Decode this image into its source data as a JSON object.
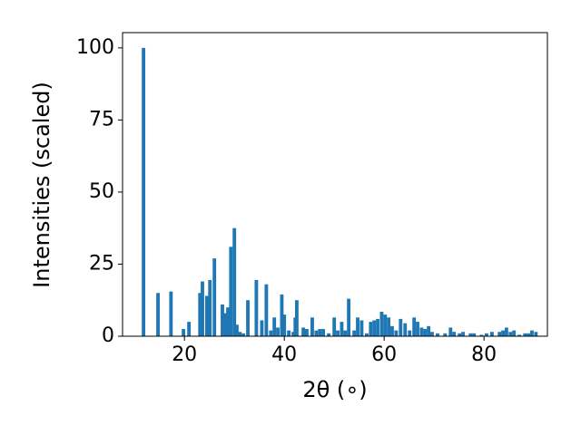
{
  "chart_data": {
    "type": "bar",
    "xlabel": "2θ (∘)",
    "ylabel": "Intensities (scaled)",
    "x": [
      11.8,
      14.7,
      17.3,
      19.8,
      20.9,
      23.1,
      23.6,
      24.5,
      25.1,
      26.0,
      27.6,
      28.2,
      28.7,
      29.3,
      30.0,
      30.5,
      31.1,
      31.8,
      32.7,
      34.4,
      35.5,
      36.4,
      37.3,
      38.0,
      38.7,
      39.5,
      40.0,
      40.9,
      41.8,
      42.2,
      42.5,
      43.8,
      44.5,
      45.6,
      46.4,
      47.1,
      47.8,
      48.9,
      50.0,
      50.7,
      51.5,
      52.2,
      52.9,
      54.0,
      54.7,
      55.5,
      56.5,
      57.3,
      58.0,
      58.7,
      59.5,
      60.2,
      60.9,
      61.6,
      62.4,
      63.3,
      64.2,
      65.1,
      66.0,
      66.7,
      67.5,
      68.2,
      68.9,
      69.6,
      70.7,
      72.2,
      73.3,
      74.0,
      75.1,
      75.8,
      77.3,
      78.0,
      79.5,
      80.5,
      81.6,
      83.1,
      83.8,
      84.5,
      85.3,
      86.0,
      87.1,
      88.2,
      88.9,
      89.6,
      90.4
    ],
    "values": [
      100,
      15,
      15.5,
      2.5,
      5,
      15,
      19,
      14,
      19.5,
      27,
      11,
      8,
      10,
      31,
      37.5,
      4,
      1.5,
      1,
      12.5,
      19.5,
      5.5,
      18,
      2,
      6.5,
      3,
      14.5,
      7.5,
      2,
      1.5,
      6.5,
      12.5,
      3,
      2.5,
      6.5,
      2,
      2.5,
      2.5,
      1,
      6.5,
      2,
      5,
      2,
      13,
      2,
      6.5,
      5.5,
      1,
      5,
      5.5,
      6,
      8.5,
      7.5,
      6.5,
      3.5,
      2,
      6,
      4.5,
      2,
      6.5,
      5,
      3,
      2.5,
      3.5,
      1.5,
      1,
      1,
      3,
      1.5,
      1,
      1.5,
      1,
      1,
      0.5,
      1,
      1.5,
      1.5,
      2,
      3,
      1.5,
      2,
      0.5,
      1,
      1,
      2,
      1.5
    ],
    "color": "#1f77b4",
    "xlim": [
      7.6,
      92.7
    ],
    "xticks": [
      20,
      40,
      60,
      80
    ],
    "ylim": [
      0,
      105.3
    ],
    "yticks": [
      0,
      25,
      50,
      75,
      100
    ]
  }
}
